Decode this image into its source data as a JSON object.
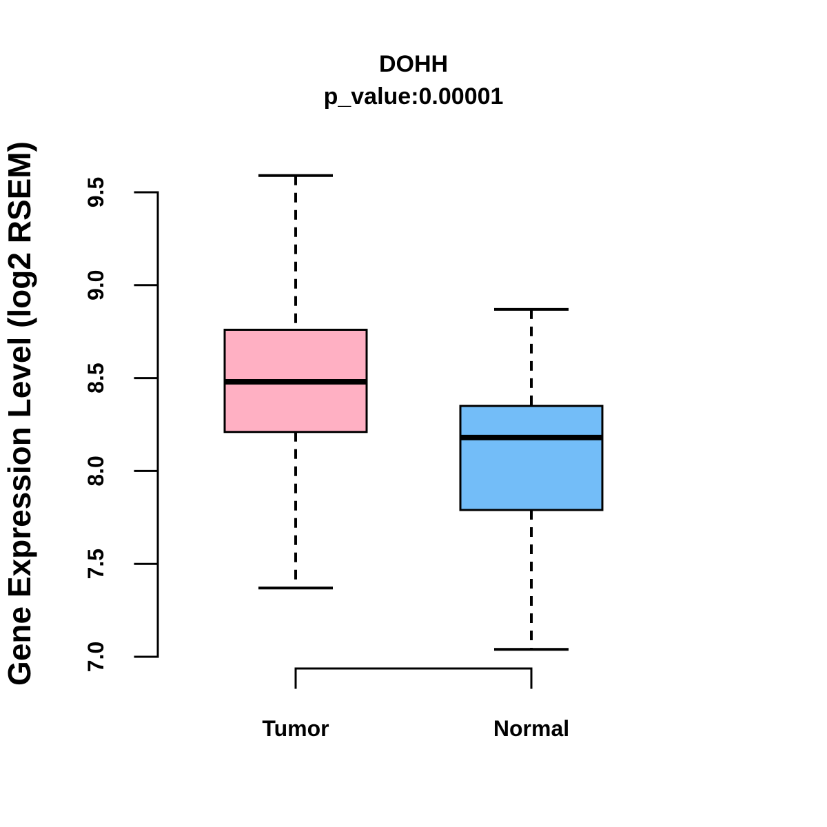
{
  "chart_data": {
    "type": "boxplot",
    "title": "DOHH",
    "subtitle": "p_value:0.00001",
    "ylabel": "Gene Expression Level (log2 RSEM)",
    "xlabel": "",
    "categories": [
      "Tumor",
      "Normal"
    ],
    "series": [
      {
        "name": "Tumor",
        "color": "#FFB0C3",
        "whisker_low": 7.37,
        "q1": 8.21,
        "median": 8.48,
        "q3": 8.76,
        "whisker_high": 9.59
      },
      {
        "name": "Normal",
        "color": "#73BDF8",
        "whisker_low": 7.04,
        "q1": 7.79,
        "median": 8.18,
        "q3": 8.35,
        "whisker_high": 8.87
      }
    ],
    "yticks": [
      {
        "label": "7.0",
        "value": 7.0
      },
      {
        "label": "7.5",
        "value": 7.5
      },
      {
        "label": "8.0",
        "value": 8.0
      },
      {
        "label": "8.5",
        "value": 8.5
      },
      {
        "label": "9.0",
        "value": 9.0
      },
      {
        "label": "9.5",
        "value": 9.5
      }
    ],
    "ylim": [
      7.0,
      9.5
    ],
    "grid": "off",
    "legend": "none",
    "axis_color": "#000000",
    "background_color": "#FFFFFF"
  }
}
